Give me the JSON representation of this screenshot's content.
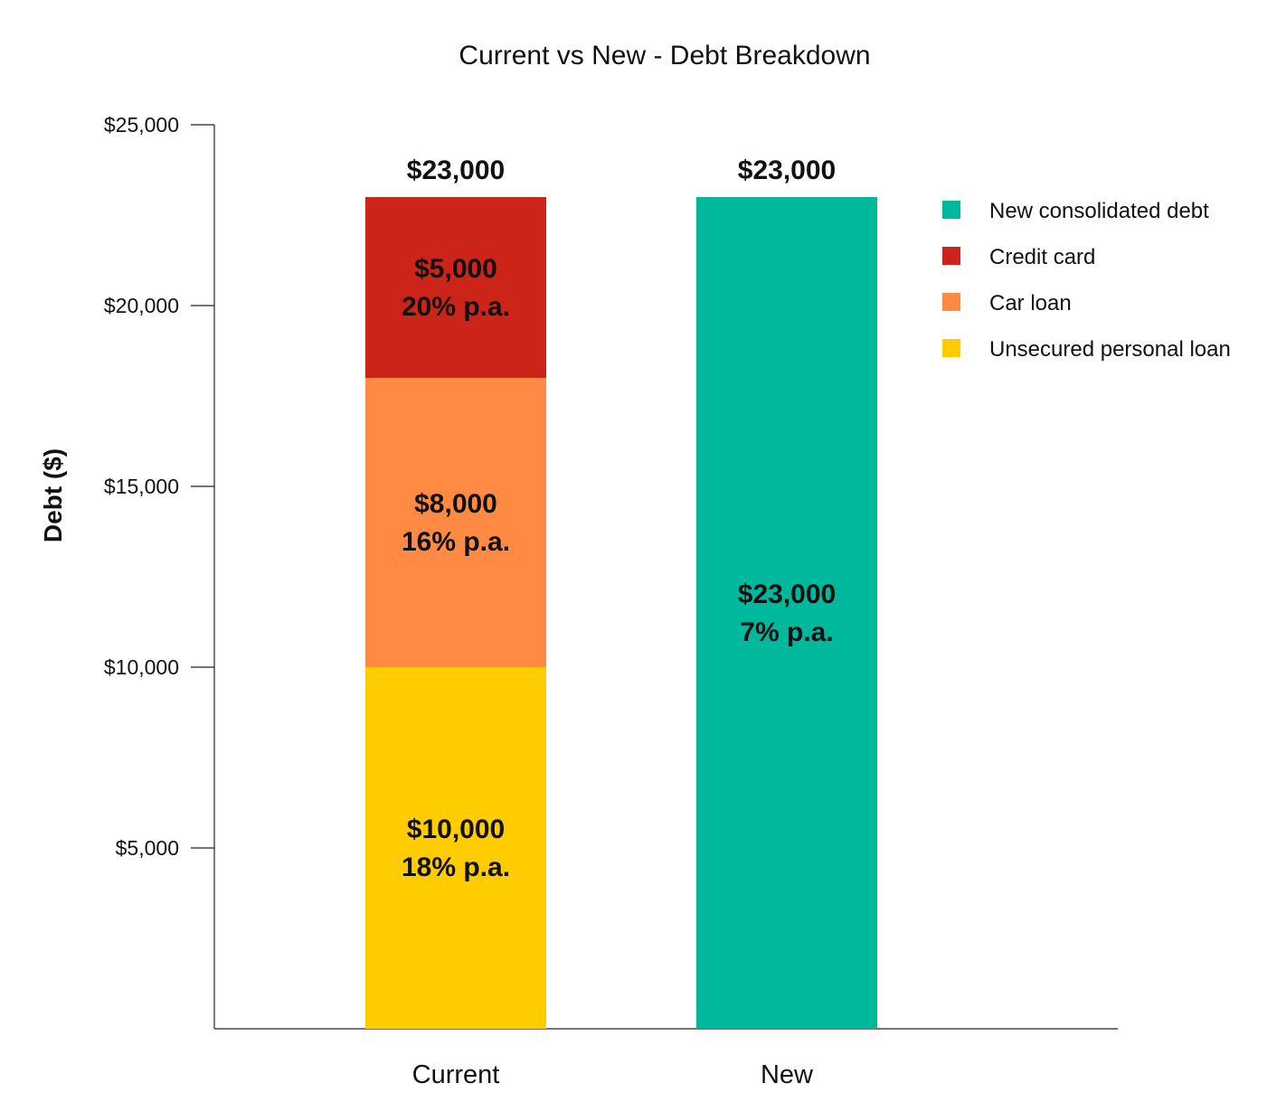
{
  "chart_data": {
    "type": "bar",
    "stacked": true,
    "title": "Current vs New - Debt Breakdown",
    "ylabel": "Debt ($)",
    "xlabel": "",
    "ylim": [
      0,
      25000
    ],
    "yticks": [
      {
        "value": 5000,
        "label": "$5,000"
      },
      {
        "value": 10000,
        "label": "$10,000"
      },
      {
        "value": 15000,
        "label": "$15,000"
      },
      {
        "value": 20000,
        "label": "$20,000"
      },
      {
        "value": 25000,
        "label": "$25,000"
      }
    ],
    "categories": [
      "Current",
      "New"
    ],
    "totals": [
      "$23,000",
      "$23,000"
    ],
    "series": [
      {
        "name": "Unsecured personal loan",
        "color": "#FFCC00",
        "values": [
          10000,
          0
        ],
        "labels": [
          [
            "$10,000",
            "18% p.a."
          ],
          null
        ]
      },
      {
        "name": "Car loan",
        "color": "#FF8A43",
        "values": [
          8000,
          0
        ],
        "labels": [
          [
            "$8,000",
            "16% p.a."
          ],
          null
        ]
      },
      {
        "name": "Credit card",
        "color": "#CC2418",
        "values": [
          5000,
          0
        ],
        "labels": [
          [
            "$5,000",
            "20% p.a."
          ],
          null
        ]
      },
      {
        "name": "New consolidated debt",
        "color": "#00B89C",
        "values": [
          0,
          23000
        ],
        "labels": [
          null,
          [
            "$23,000",
            "7% p.a."
          ]
        ]
      }
    ],
    "legend": {
      "position": "top-right",
      "order": [
        "New consolidated debt",
        "Credit card",
        "Car loan",
        "Unsecured personal loan"
      ]
    },
    "grid": false
  }
}
